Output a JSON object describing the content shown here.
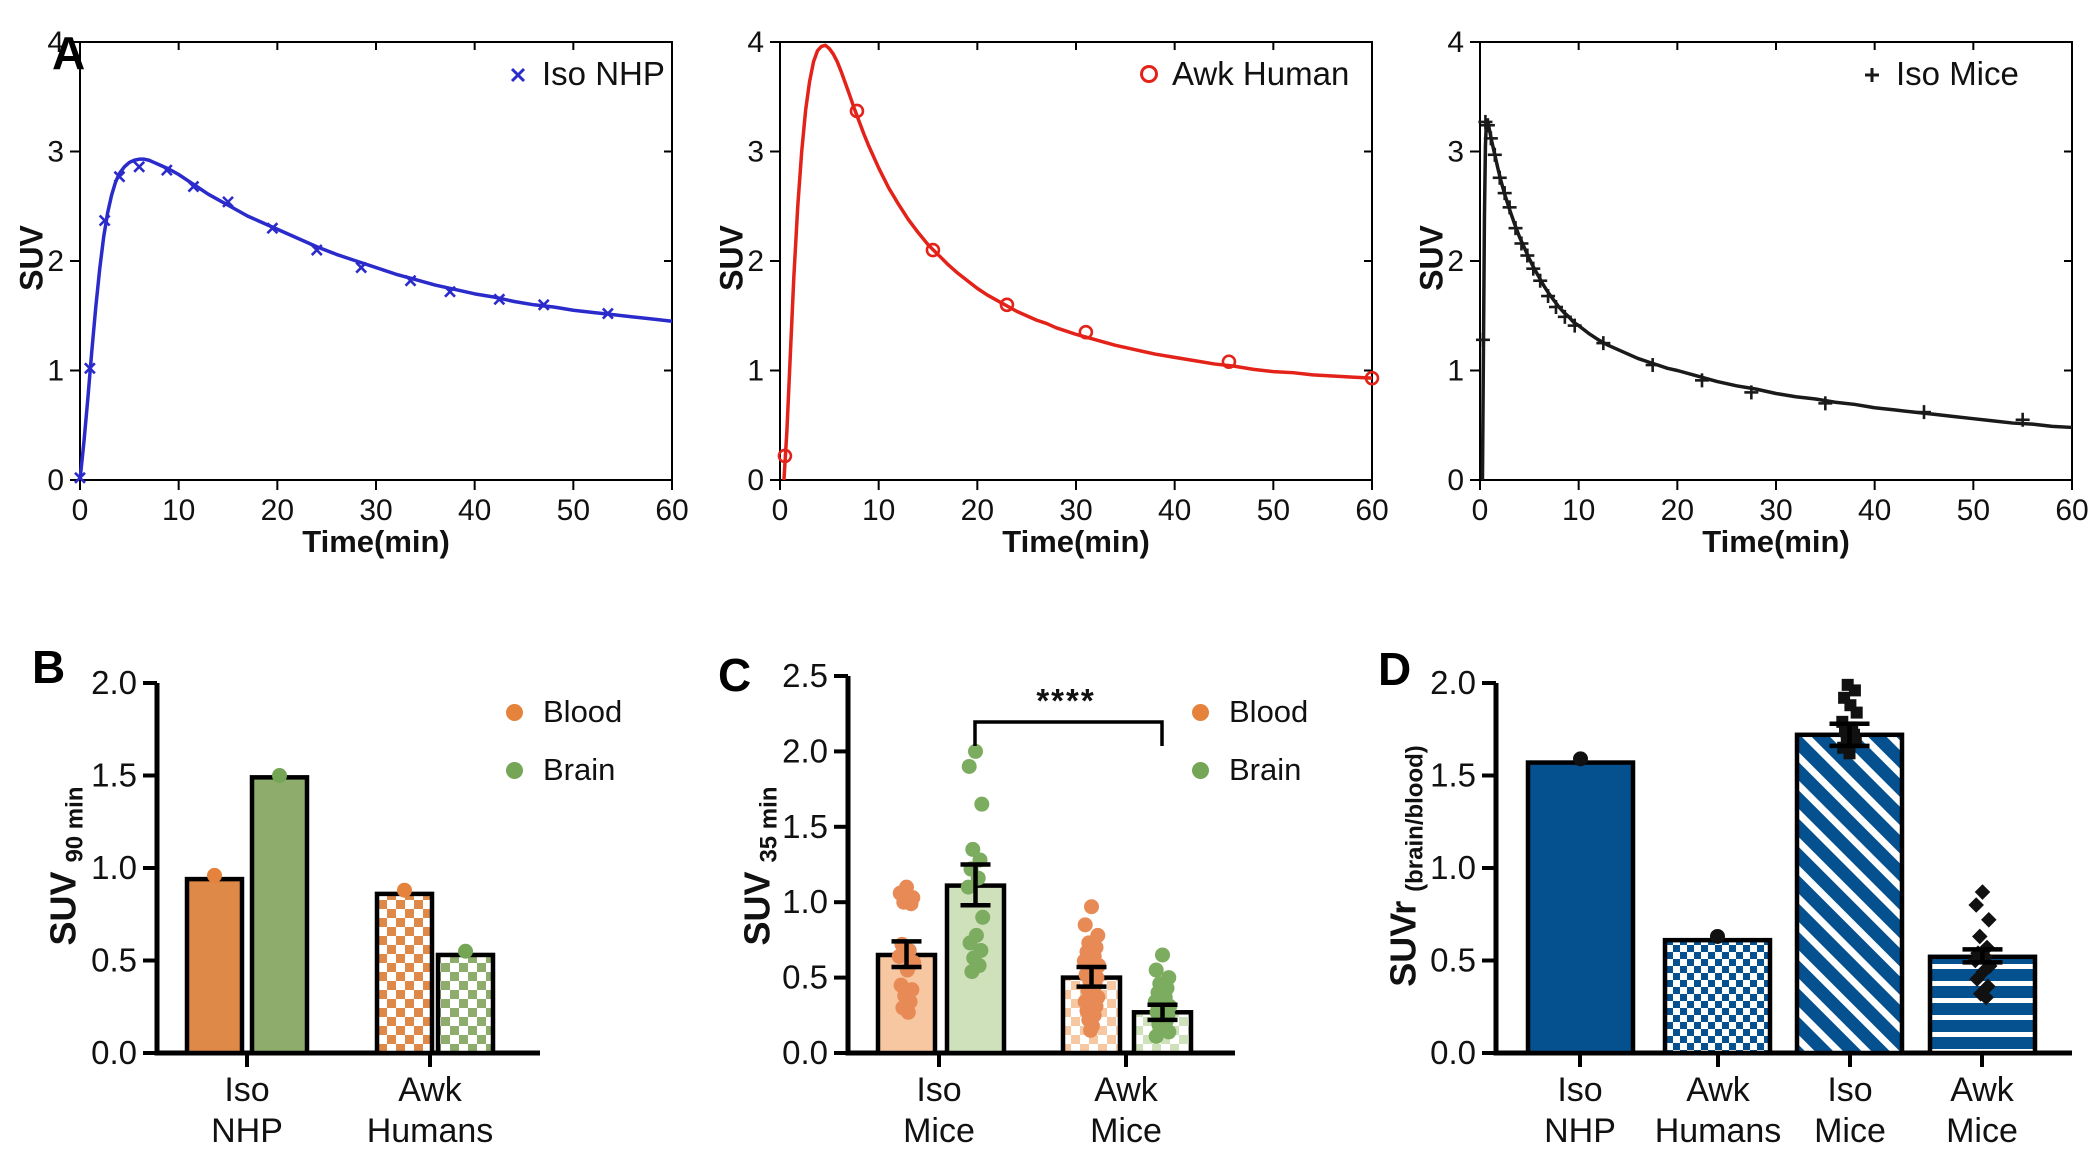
{
  "figure": {
    "panels": {
      "A": {
        "label": "A"
      },
      "B": {
        "label": "B"
      },
      "C": {
        "label": "C"
      },
      "D": {
        "label": "D"
      }
    }
  },
  "colors": {
    "blue_line": "#2b2bcc",
    "red_line": "#e32219",
    "black_line": "#1a1a1a",
    "orange": "#de8948",
    "orange_dot": "#e5823b",
    "orange_light": "#f7c7a2",
    "orange_scatter": "#e78a55",
    "green": "#8ead6c",
    "green_dot": "#74a656",
    "green_light": "#cfe1bb",
    "green_scatter": "#7cac5f",
    "dark_blue": "#05518f",
    "axis": "#000000"
  },
  "chart_data": [
    {
      "id": "A1",
      "type": "line",
      "legend": "Iso NHP",
      "marker": "x",
      "color": "#2b2bcc",
      "xlabel": "Time(min)",
      "ylabel": "SUV",
      "xlim": [
        0,
        60
      ],
      "ylim": [
        0,
        4
      ],
      "xticks": [
        0,
        10,
        20,
        30,
        40,
        50,
        60
      ],
      "yticks": [
        0,
        1,
        2,
        3,
        4
      ],
      "legend_position": "top-right",
      "points": [
        [
          0,
          0.02
        ],
        [
          1,
          1.02
        ],
        [
          2.5,
          2.37
        ],
        [
          4,
          2.77
        ],
        [
          6,
          2.86
        ],
        [
          8.8,
          2.83
        ],
        [
          11.5,
          2.68
        ],
        [
          15,
          2.54
        ],
        [
          19.5,
          2.3
        ],
        [
          24,
          2.1
        ],
        [
          28.5,
          1.94
        ],
        [
          33.5,
          1.82
        ],
        [
          37.5,
          1.72
        ],
        [
          42.5,
          1.65
        ],
        [
          47,
          1.6
        ],
        [
          53.5,
          1.52
        ]
      ],
      "fit_curve": [
        [
          0,
          0
        ],
        [
          0.4,
          0.35
        ],
        [
          0.8,
          0.75
        ],
        [
          1.2,
          1.18
        ],
        [
          1.6,
          1.58
        ],
        [
          2,
          1.93
        ],
        [
          2.4,
          2.22
        ],
        [
          2.8,
          2.44
        ],
        [
          3.2,
          2.6
        ],
        [
          3.6,
          2.72
        ],
        [
          4,
          2.8
        ],
        [
          4.5,
          2.86
        ],
        [
          5,
          2.9
        ],
        [
          5.5,
          2.92
        ],
        [
          6,
          2.93
        ],
        [
          6.5,
          2.93
        ],
        [
          7,
          2.92
        ],
        [
          7.5,
          2.9
        ],
        [
          8,
          2.88
        ],
        [
          9,
          2.84
        ],
        [
          10,
          2.79
        ],
        [
          11,
          2.73
        ],
        [
          12,
          2.67
        ],
        [
          13,
          2.61
        ],
        [
          14,
          2.56
        ],
        [
          15,
          2.51
        ],
        [
          16,
          2.46
        ],
        [
          17,
          2.41
        ],
        [
          18,
          2.37
        ],
        [
          19,
          2.33
        ],
        [
          20,
          2.29
        ],
        [
          22,
          2.21
        ],
        [
          24,
          2.13
        ],
        [
          26,
          2.06
        ],
        [
          28,
          2.0
        ],
        [
          30,
          1.94
        ],
        [
          32,
          1.88
        ],
        [
          34,
          1.83
        ],
        [
          36,
          1.78
        ],
        [
          38,
          1.74
        ],
        [
          40,
          1.7
        ],
        [
          42,
          1.67
        ],
        [
          44,
          1.63
        ],
        [
          46,
          1.6
        ],
        [
          48,
          1.58
        ],
        [
          50,
          1.55
        ],
        [
          52,
          1.53
        ],
        [
          54,
          1.51
        ],
        [
          56,
          1.49
        ],
        [
          58,
          1.47
        ],
        [
          60,
          1.45
        ]
      ]
    },
    {
      "id": "A2",
      "type": "line",
      "legend": "Awk Human",
      "marker": "o",
      "color": "#e32219",
      "xlabel": "Time(min)",
      "ylabel": "SUV",
      "xlim": [
        0,
        60
      ],
      "ylim": [
        0,
        4
      ],
      "xticks": [
        0,
        10,
        20,
        30,
        40,
        50,
        60
      ],
      "yticks": [
        0,
        1,
        2,
        3,
        4
      ],
      "legend_position": "top-right",
      "points": [
        [
          0.5,
          0.22
        ],
        [
          7.8,
          3.37
        ],
        [
          15.5,
          2.1
        ],
        [
          23,
          1.6
        ],
        [
          31,
          1.35
        ],
        [
          45.5,
          1.08
        ],
        [
          60,
          0.93
        ]
      ],
      "fit_curve": [
        [
          0.4,
          0
        ],
        [
          0.7,
          0.45
        ],
        [
          1,
          1.05
        ],
        [
          1.4,
          1.85
        ],
        [
          1.8,
          2.5
        ],
        [
          2.2,
          3.0
        ],
        [
          2.6,
          3.38
        ],
        [
          3,
          3.64
        ],
        [
          3.4,
          3.82
        ],
        [
          3.8,
          3.92
        ],
        [
          4.2,
          3.96
        ],
        [
          4.6,
          3.97
        ],
        [
          5,
          3.94
        ],
        [
          5.4,
          3.89
        ],
        [
          5.8,
          3.82
        ],
        [
          6.2,
          3.73
        ],
        [
          6.6,
          3.63
        ],
        [
          7,
          3.53
        ],
        [
          7.5,
          3.4
        ],
        [
          8,
          3.28
        ],
        [
          8.5,
          3.16
        ],
        [
          9,
          3.05
        ],
        [
          10,
          2.85
        ],
        [
          11,
          2.67
        ],
        [
          12,
          2.52
        ],
        [
          13,
          2.38
        ],
        [
          14,
          2.26
        ],
        [
          15,
          2.15
        ],
        [
          16,
          2.06
        ],
        [
          17,
          1.97
        ],
        [
          18,
          1.89
        ],
        [
          19,
          1.82
        ],
        [
          20,
          1.75
        ],
        [
          21,
          1.69
        ],
        [
          22,
          1.64
        ],
        [
          23,
          1.59
        ],
        [
          24,
          1.54
        ],
        [
          25,
          1.5
        ],
        [
          26,
          1.46
        ],
        [
          27,
          1.43
        ],
        [
          28,
          1.39
        ],
        [
          29,
          1.36
        ],
        [
          30,
          1.33
        ],
        [
          32,
          1.28
        ],
        [
          34,
          1.23
        ],
        [
          36,
          1.19
        ],
        [
          38,
          1.15
        ],
        [
          40,
          1.12
        ],
        [
          42,
          1.09
        ],
        [
          44,
          1.06
        ],
        [
          46,
          1.04
        ],
        [
          48,
          1.01
        ],
        [
          50,
          0.99
        ],
        [
          52,
          0.98
        ],
        [
          54,
          0.96
        ],
        [
          56,
          0.95
        ],
        [
          58,
          0.94
        ],
        [
          60,
          0.93
        ]
      ]
    },
    {
      "id": "A3",
      "type": "line",
      "legend": "Iso Mice",
      "marker": "+",
      "color": "#1a1a1a",
      "xlabel": "Time(min)",
      "ylabel": "SUV",
      "xlim": [
        0,
        60
      ],
      "ylim": [
        0,
        4
      ],
      "xticks": [
        0,
        10,
        20,
        30,
        40,
        50,
        60
      ],
      "yticks": [
        0,
        1,
        2,
        3,
        4
      ],
      "legend_position": "top-right",
      "points": [
        [
          0.3,
          1.28
        ],
        [
          0.55,
          3.27
        ],
        [
          0.8,
          3.24
        ],
        [
          1.1,
          3.12
        ],
        [
          1.5,
          2.97
        ],
        [
          2,
          2.76
        ],
        [
          2.5,
          2.62
        ],
        [
          3,
          2.49
        ],
        [
          3.6,
          2.3
        ],
        [
          4.2,
          2.16
        ],
        [
          4.8,
          2.05
        ],
        [
          5.4,
          1.93
        ],
        [
          6.1,
          1.82
        ],
        [
          6.9,
          1.68
        ],
        [
          7.7,
          1.58
        ],
        [
          8.6,
          1.49
        ],
        [
          9.6,
          1.41
        ],
        [
          12.5,
          1.25
        ],
        [
          17.5,
          1.05
        ],
        [
          22.5,
          0.91
        ],
        [
          27.5,
          0.8
        ],
        [
          35,
          0.7
        ],
        [
          45,
          0.62
        ],
        [
          55,
          0.55
        ]
      ],
      "fit_curve": [
        [
          0.25,
          0
        ],
        [
          0.35,
          1.2
        ],
        [
          0.45,
          2.4
        ],
        [
          0.55,
          3.05
        ],
        [
          0.65,
          3.28
        ],
        [
          0.8,
          3.27
        ],
        [
          1,
          3.18
        ],
        [
          1.2,
          3.09
        ],
        [
          1.5,
          2.97
        ],
        [
          1.8,
          2.85
        ],
        [
          2.1,
          2.74
        ],
        [
          2.5,
          2.61
        ],
        [
          3,
          2.47
        ],
        [
          3.5,
          2.34
        ],
        [
          4,
          2.22
        ],
        [
          4.5,
          2.12
        ],
        [
          5,
          2.02
        ],
        [
          5.5,
          1.93
        ],
        [
          6,
          1.85
        ],
        [
          6.5,
          1.77
        ],
        [
          7,
          1.7
        ],
        [
          7.5,
          1.64
        ],
        [
          8,
          1.58
        ],
        [
          8.5,
          1.53
        ],
        [
          9,
          1.49
        ],
        [
          9.5,
          1.44
        ],
        [
          10,
          1.41
        ],
        [
          11,
          1.34
        ],
        [
          12,
          1.28
        ],
        [
          13,
          1.23
        ],
        [
          14,
          1.19
        ],
        [
          15,
          1.15
        ],
        [
          16,
          1.11
        ],
        [
          17,
          1.08
        ],
        [
          18,
          1.05
        ],
        [
          19,
          1.02
        ],
        [
          20,
          1.0
        ],
        [
          22,
          0.95
        ],
        [
          24,
          0.9
        ],
        [
          26,
          0.86
        ],
        [
          28,
          0.83
        ],
        [
          30,
          0.79
        ],
        [
          32,
          0.76
        ],
        [
          34,
          0.74
        ],
        [
          36,
          0.71
        ],
        [
          38,
          0.69
        ],
        [
          40,
          0.66
        ],
        [
          42,
          0.64
        ],
        [
          44,
          0.62
        ],
        [
          46,
          0.6
        ],
        [
          48,
          0.58
        ],
        [
          50,
          0.56
        ],
        [
          52,
          0.54
        ],
        [
          54,
          0.52
        ],
        [
          56,
          0.51
        ],
        [
          58,
          0.49
        ],
        [
          60,
          0.48
        ]
      ]
    },
    {
      "id": "B",
      "type": "bar",
      "ylabel_main": "SUV",
      "ylabel_sub": "90 min",
      "ylim": [
        0,
        2.0
      ],
      "yticks": [
        "0.0",
        "0.5",
        "1.0",
        "1.5",
        "2.0"
      ],
      "groups": [
        [
          "Iso",
          "NHP"
        ],
        [
          "Awk",
          "Humans"
        ]
      ],
      "series": [
        {
          "name": "Blood",
          "color": "#e5823b"
        },
        {
          "name": "Brain",
          "color": "#74a656"
        }
      ],
      "bars": [
        {
          "group": 0,
          "series": "Blood",
          "value": 0.94,
          "pattern": "solid-orange",
          "dots": [
            0.96
          ],
          "dot_color": "#e5823b"
        },
        {
          "group": 0,
          "series": "Brain",
          "value": 1.49,
          "pattern": "solid-green",
          "dots": [
            1.5
          ],
          "dot_color": "#74a656"
        },
        {
          "group": 1,
          "series": "Blood",
          "value": 0.86,
          "pattern": "check-orange",
          "dots": [
            0.88
          ],
          "dot_color": "#e5823b"
        },
        {
          "group": 1,
          "series": "Brain",
          "value": 0.53,
          "pattern": "check-green",
          "dots": [
            0.55
          ],
          "dot_color": "#74a656"
        }
      ]
    },
    {
      "id": "C",
      "type": "bar",
      "ylabel_main": "SUV",
      "ylabel_sub": "35 min",
      "ylim": [
        0,
        2.5
      ],
      "yticks": [
        "0.0",
        "0.5",
        "1.0",
        "1.5",
        "2.0",
        "2.5"
      ],
      "groups": [
        [
          "Iso",
          "Mice"
        ],
        [
          "Awk",
          "Mice"
        ]
      ],
      "series": [
        {
          "name": "Blood",
          "color": "#e5823b"
        },
        {
          "name": "Brain",
          "color": "#74a656"
        }
      ],
      "significance": {
        "label": "****",
        "between": [
          "Iso Mice Brain",
          "Awk Mice Brain"
        ]
      },
      "bars": [
        {
          "group": 0,
          "series": "Blood",
          "value": 0.65,
          "err": [
            0.57,
            0.74
          ],
          "pattern": "solid-lorange",
          "dot_color": "#e78a55",
          "dots": [
            1.1,
            1.06,
            1.03,
            1.0,
            0.99,
            0.72,
            0.68,
            0.64,
            0.6,
            0.55,
            0.45,
            0.42,
            0.38,
            0.34,
            0.3,
            0.27
          ]
        },
        {
          "group": 0,
          "series": "Brain",
          "value": 1.11,
          "err": [
            0.98,
            1.25
          ],
          "pattern": "solid-lgreen",
          "dot_color": "#7cac5f",
          "dots": [
            2.0,
            1.9,
            1.65,
            1.35,
            1.28,
            1.22,
            1.16,
            1.1,
            0.9,
            0.78,
            0.73,
            0.68,
            0.63,
            0.58,
            0.54
          ]
        },
        {
          "group": 1,
          "series": "Blood",
          "value": 0.5,
          "err": [
            0.44,
            0.57
          ],
          "pattern": "check-lorange",
          "dot_color": "#e78a55",
          "dots": [
            0.97,
            0.85,
            0.78,
            0.73,
            0.7,
            0.67,
            0.64,
            0.61,
            0.58,
            0.55,
            0.52,
            0.5,
            0.48,
            0.45,
            0.42,
            0.4,
            0.37,
            0.34,
            0.31,
            0.28,
            0.25,
            0.22,
            0.18,
            0.15
          ]
        },
        {
          "group": 1,
          "series": "Brain",
          "value": 0.27,
          "err": [
            0.22,
            0.32
          ],
          "pattern": "check-lgreen",
          "dot_color": "#7cac5f",
          "dots": [
            0.65,
            0.55,
            0.5,
            0.46,
            0.43,
            0.4,
            0.37,
            0.34,
            0.31,
            0.29,
            0.27,
            0.25,
            0.23,
            0.21,
            0.19,
            0.17,
            0.14,
            0.11
          ]
        }
      ]
    },
    {
      "id": "D",
      "type": "bar",
      "ylabel_main": "SUVr",
      "ylabel_sub": "(brain/blood)",
      "ylim": [
        0,
        2.0
      ],
      "yticks": [
        "0.0",
        "0.5",
        "1.0",
        "1.5",
        "2.0"
      ],
      "groups": [
        [
          "Iso",
          "NHP"
        ],
        [
          "Awk",
          "Humans"
        ],
        [
          "Iso",
          "Mice"
        ],
        [
          "Awk",
          "Mice"
        ]
      ],
      "bars": [
        {
          "group": 0,
          "value": 1.57,
          "pattern": "solid-blue",
          "marker": "dot",
          "dot_color": "#111111",
          "dots": [
            1.59
          ]
        },
        {
          "group": 1,
          "value": 0.61,
          "pattern": "check-blue",
          "marker": "dot",
          "dot_color": "#111111",
          "dots": [
            0.63
          ]
        },
        {
          "group": 2,
          "value": 1.72,
          "err": [
            1.66,
            1.78
          ],
          "pattern": "diag-blue",
          "marker": "square",
          "dot_color": "#111111",
          "dots": [
            1.62,
            1.65,
            1.68,
            1.7,
            1.72,
            1.74,
            1.76,
            1.79,
            1.84,
            1.88,
            1.92,
            1.96,
            1.99
          ]
        },
        {
          "group": 3,
          "value": 0.52,
          "err": [
            0.49,
            0.56
          ],
          "pattern": "horiz-blue",
          "marker": "diamond",
          "dot_color": "#111111",
          "dots": [
            0.87,
            0.8,
            0.72,
            0.63,
            0.57,
            0.54,
            0.52,
            0.5,
            0.47,
            0.44,
            0.4,
            0.36,
            0.32,
            0.3
          ]
        }
      ]
    }
  ]
}
